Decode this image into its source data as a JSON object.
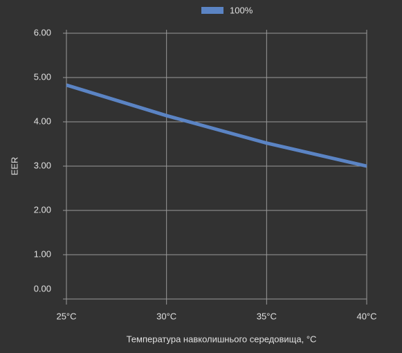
{
  "chart_data": {
    "type": "line",
    "categories": [
      "25°C",
      "30°C",
      "35°C",
      "40°C"
    ],
    "series": [
      {
        "name": "100%",
        "color": "#5b84c4",
        "values": [
          4.83,
          4.14,
          3.52,
          3.0
        ]
      }
    ],
    "xlabel": "Температура навколишнього середовища, °C",
    "ylabel": "EER",
    "ylim": [
      0,
      6
    ],
    "yticks": [
      {
        "value": 0,
        "label": "0.00"
      },
      {
        "value": 1,
        "label": "1.00"
      },
      {
        "value": 2,
        "label": "2.00"
      },
      {
        "value": 3,
        "label": "3.00"
      },
      {
        "value": 4,
        "label": "4.00"
      },
      {
        "value": 5,
        "label": "5.00"
      },
      {
        "value": 6,
        "label": "6.00"
      }
    ],
    "grid": true,
    "legend": "top"
  }
}
